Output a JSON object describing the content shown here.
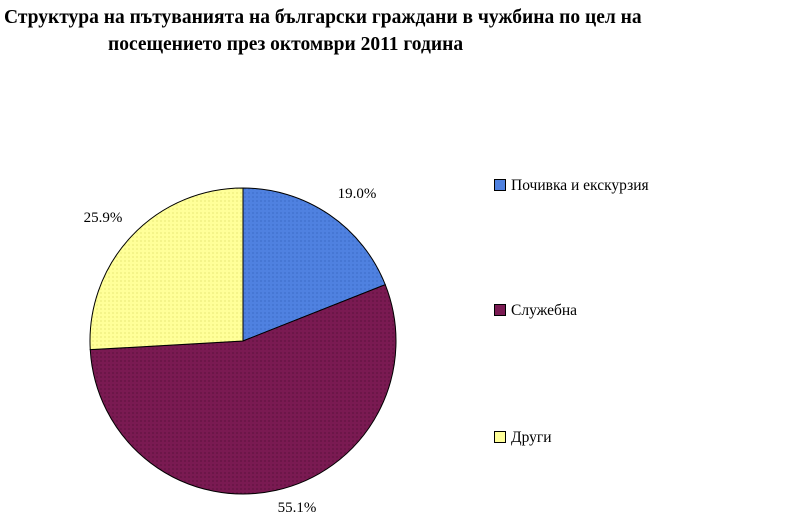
{
  "chart_data": {
    "type": "pie",
    "title_line1": "Структура на пътуванията на български граждани в чужбина по цел на",
    "title_line2": "посещението през октомври 2011 година",
    "slices": [
      {
        "name": "Почивка и екскурзия",
        "value": 19.0,
        "label": "19.0%",
        "color": "#4f81e0"
      },
      {
        "name": "Служебна",
        "value": 55.1,
        "label": "55.1%",
        "color": "#7a1a52"
      },
      {
        "name": "Други",
        "value": 25.9,
        "label": "25.9%",
        "color": "#ffff99"
      }
    ],
    "legend_position": "right"
  }
}
